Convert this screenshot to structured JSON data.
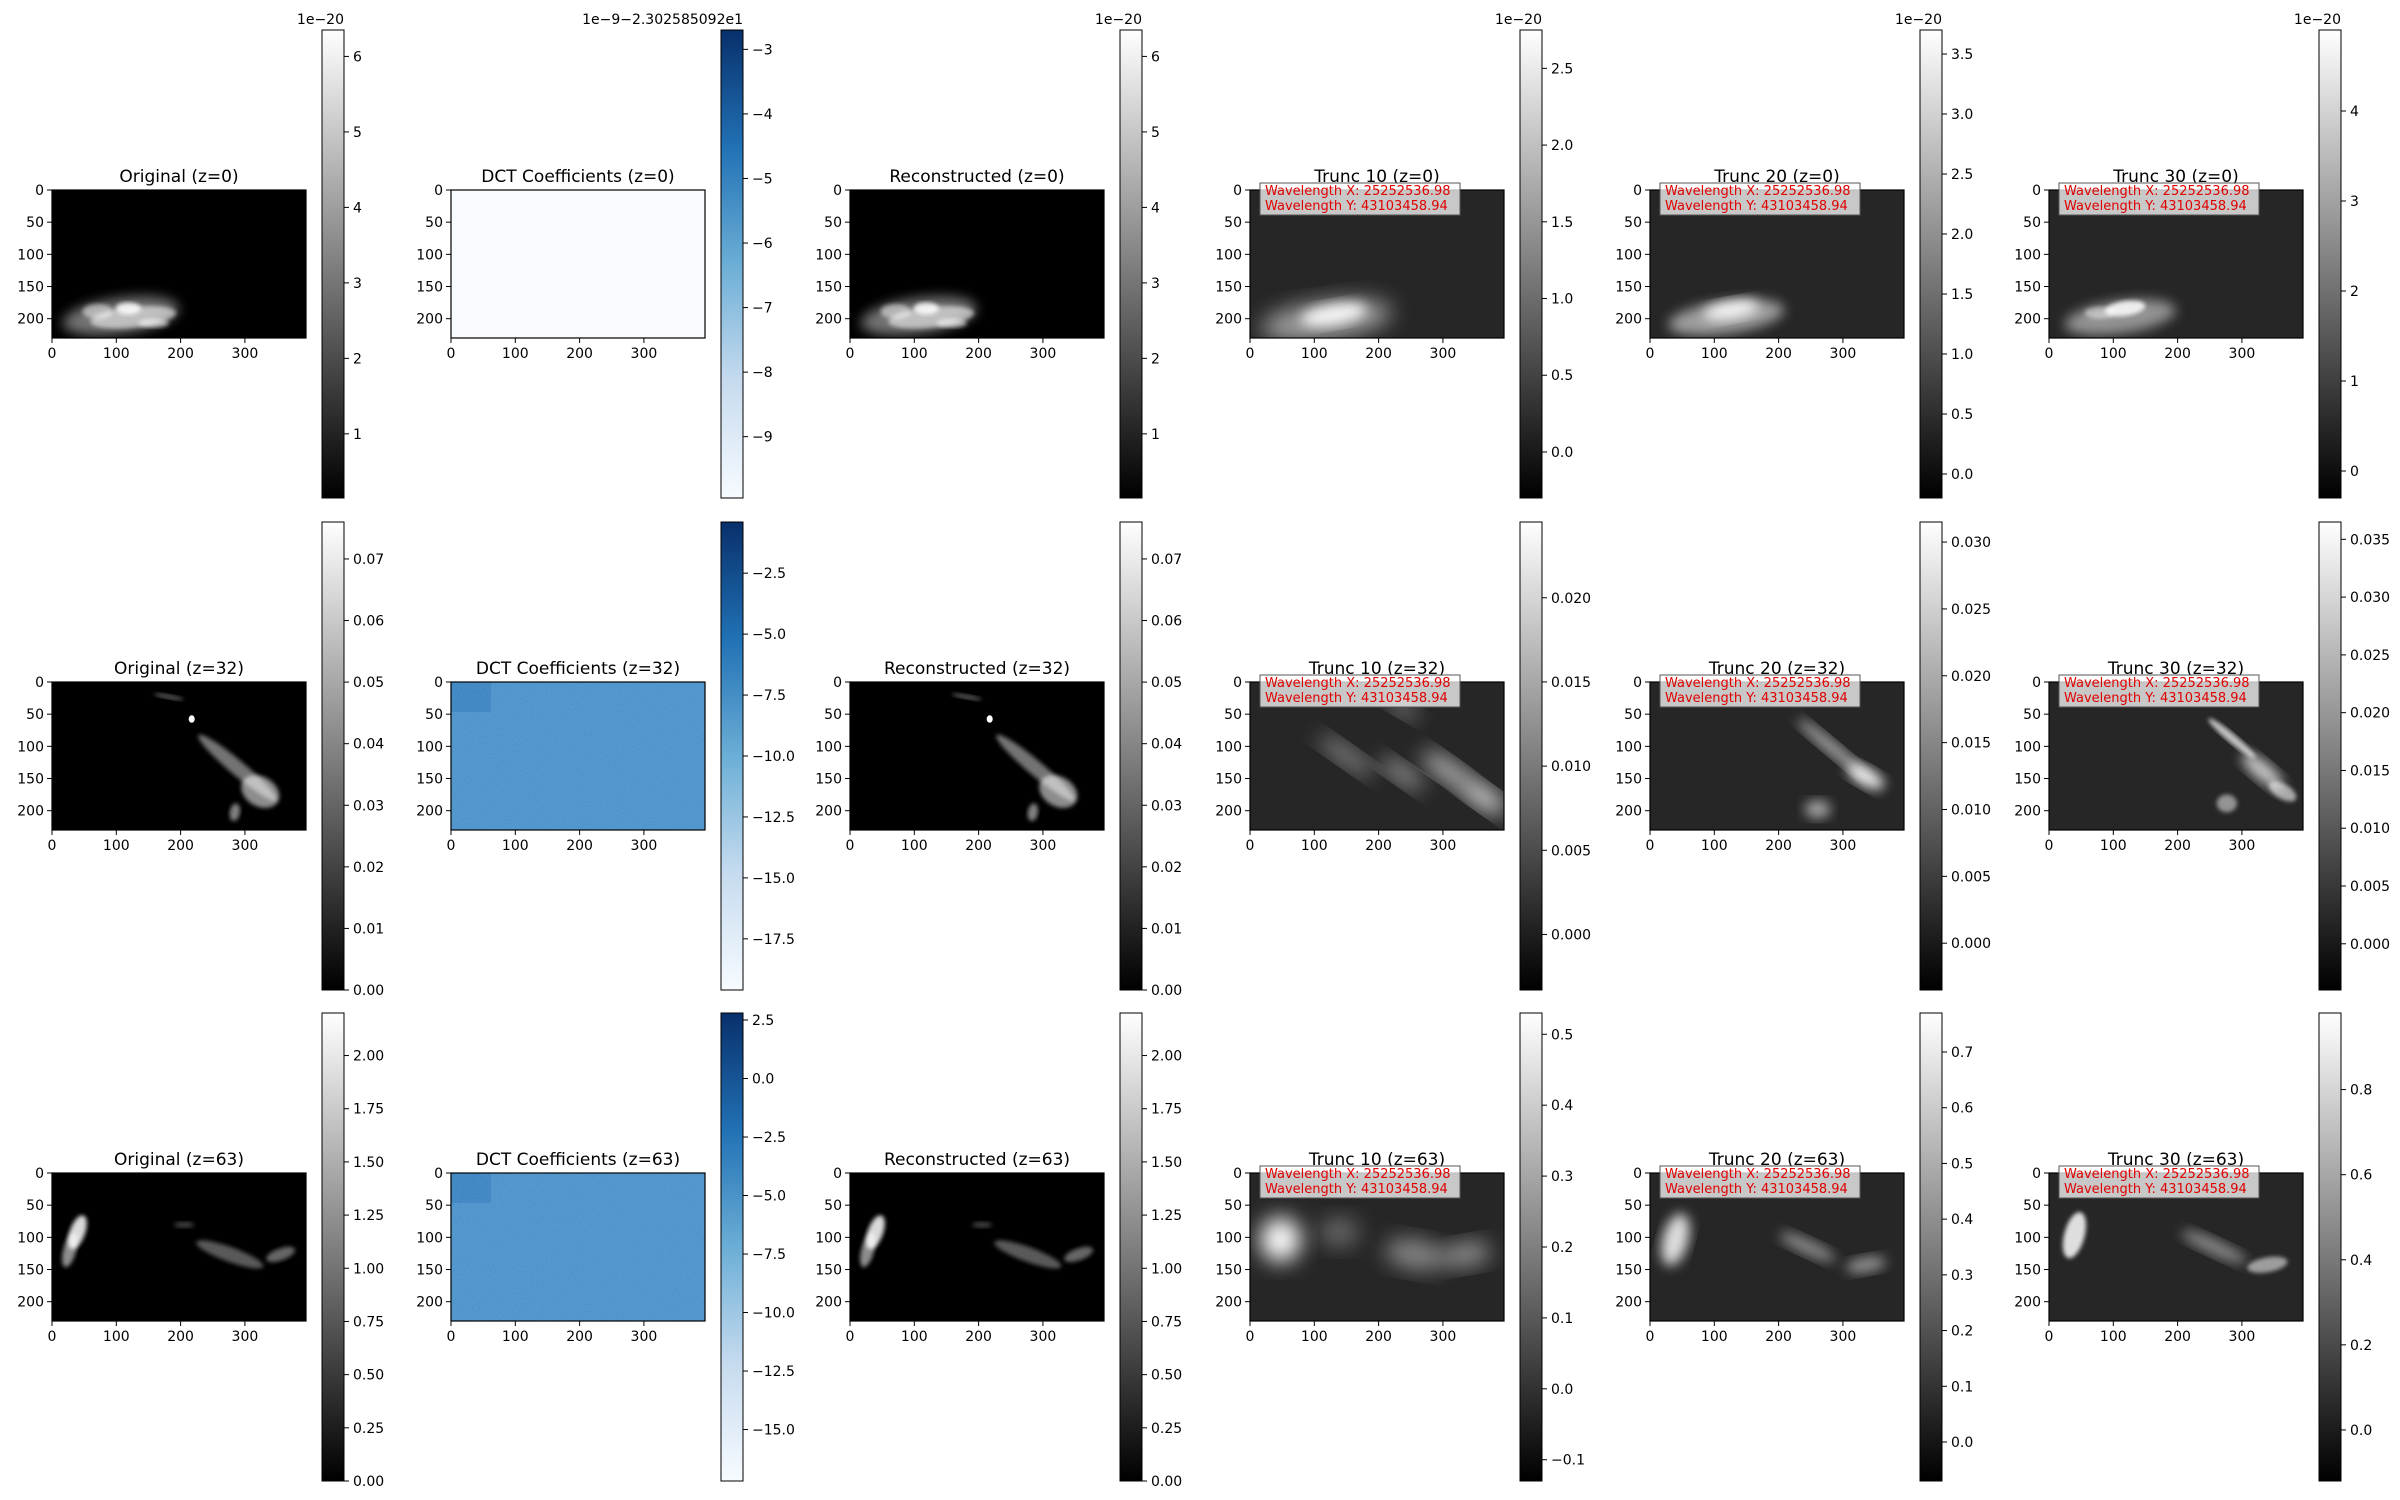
{
  "figure": {
    "description_rows": [
      "z=0",
      "z=32",
      "z=63"
    ]
  },
  "chart_data": [
    {
      "type": "heatmap",
      "title": "Original (z=0)",
      "cmap": "gray",
      "image": "orig0",
      "xticks": [
        0,
        100,
        200,
        300
      ],
      "yticks": [
        0,
        50,
        100,
        150,
        200
      ],
      "xlim": [
        0,
        395
      ],
      "ylim": [
        230,
        0
      ],
      "colorbar": {
        "ticks": [
          1,
          2,
          3,
          4,
          5,
          6
        ],
        "labels": [
          "1",
          "2",
          "3",
          "4",
          "5",
          "6"
        ],
        "range": [
          0.15,
          6.35
        ],
        "offset": "1e−20"
      },
      "annotations": []
    },
    {
      "type": "heatmap",
      "title": "DCT Coefficients (z=0)",
      "cmap": "blues",
      "image": "dctflat",
      "xticks": [
        0,
        100,
        200,
        300
      ],
      "yticks": [
        0,
        50,
        100,
        150,
        200
      ],
      "xlim": [
        0,
        395
      ],
      "ylim": [
        230,
        0
      ],
      "colorbar": {
        "ticks": [
          -9,
          -8,
          -7,
          -6,
          -5,
          -4,
          -3
        ],
        "labels": [
          "−9",
          "−8",
          "−7",
          "−6",
          "−5",
          "−4",
          "−3"
        ],
        "range": [
          -9.95,
          -2.7
        ],
        "offset": "1e−9−2.302585092e1"
      },
      "annotations": []
    },
    {
      "type": "heatmap",
      "title": "Reconstructed (z=0)",
      "cmap": "gray",
      "image": "orig0",
      "xticks": [
        0,
        100,
        200,
        300
      ],
      "yticks": [
        0,
        50,
        100,
        150,
        200
      ],
      "xlim": [
        0,
        395
      ],
      "ylim": [
        230,
        0
      ],
      "colorbar": {
        "ticks": [
          1,
          2,
          3,
          4,
          5,
          6
        ],
        "labels": [
          "1",
          "2",
          "3",
          "4",
          "5",
          "6"
        ],
        "range": [
          0.15,
          6.35
        ],
        "offset": "1e−20"
      },
      "annotations": []
    },
    {
      "type": "heatmap",
      "title": "Trunc 10 (z=0)",
      "cmap": "gray",
      "image": "t10z0",
      "xticks": [
        0,
        100,
        200,
        300
      ],
      "yticks": [
        0,
        50,
        100,
        150,
        200
      ],
      "xlim": [
        0,
        395
      ],
      "ylim": [
        230,
        0
      ],
      "colorbar": {
        "ticks": [
          0,
          0.5,
          1,
          1.5,
          2,
          2.5
        ],
        "labels": [
          "0.0",
          "0.5",
          "1.0",
          "1.5",
          "2.0",
          "2.5"
        ],
        "range": [
          -0.3,
          2.75
        ],
        "offset": "1e−20"
      },
      "annotations": [
        "Wavelength X: 25252536.98",
        "Wavelength Y: 43103458.94"
      ]
    },
    {
      "type": "heatmap",
      "title": "Trunc 20 (z=0)",
      "cmap": "gray",
      "image": "t20z0",
      "xticks": [
        0,
        100,
        200,
        300
      ],
      "yticks": [
        0,
        50,
        100,
        150,
        200
      ],
      "xlim": [
        0,
        395
      ],
      "ylim": [
        230,
        0
      ],
      "colorbar": {
        "ticks": [
          0,
          0.5,
          1,
          1.5,
          2,
          2.5,
          3,
          3.5
        ],
        "labels": [
          "0.0",
          "0.5",
          "1.0",
          "1.5",
          "2.0",
          "2.5",
          "3.0",
          "3.5"
        ],
        "range": [
          -0.2,
          3.7
        ],
        "offset": "1e−20"
      },
      "annotations": [
        "Wavelength X: 25252536.98",
        "Wavelength Y: 43103458.94"
      ]
    },
    {
      "type": "heatmap",
      "title": "Trunc 30 (z=0)",
      "cmap": "gray",
      "image": "t30z0",
      "xticks": [
        0,
        100,
        200,
        300
      ],
      "yticks": [
        0,
        50,
        100,
        150,
        200
      ],
      "xlim": [
        0,
        395
      ],
      "ylim": [
        230,
        0
      ],
      "colorbar": {
        "ticks": [
          0,
          1,
          2,
          3,
          4
        ],
        "labels": [
          "0",
          "1",
          "2",
          "3",
          "4"
        ],
        "range": [
          -0.3,
          4.9
        ],
        "offset": "1e−20"
      },
      "annotations": [
        "Wavelength X: 25252536.98",
        "Wavelength Y: 43103458.94"
      ]
    },
    {
      "type": "heatmap",
      "title": "Original (z=32)",
      "cmap": "gray",
      "image": "orig32",
      "xticks": [
        0,
        100,
        200,
        300
      ],
      "yticks": [
        0,
        50,
        100,
        150,
        200
      ],
      "xlim": [
        0,
        395
      ],
      "ylim": [
        230,
        0
      ],
      "colorbar": {
        "ticks": [
          0,
          0.01,
          0.02,
          0.03,
          0.04,
          0.05,
          0.06,
          0.07
        ],
        "labels": [
          "0.00",
          "0.01",
          "0.02",
          "0.03",
          "0.04",
          "0.05",
          "0.06",
          "0.07"
        ],
        "range": [
          0,
          0.076
        ],
        "offset": ""
      },
      "annotations": []
    },
    {
      "type": "heatmap",
      "title": "DCT Coefficients (z=32)",
      "cmap": "blues",
      "image": "dct32",
      "xticks": [
        0,
        100,
        200,
        300
      ],
      "yticks": [
        0,
        50,
        100,
        150,
        200
      ],
      "xlim": [
        0,
        395
      ],
      "ylim": [
        230,
        0
      ],
      "colorbar": {
        "ticks": [
          -17.5,
          -15,
          -12.5,
          -10,
          -7.5,
          -5,
          -2.5
        ],
        "labels": [
          "−17.5",
          "−15.0",
          "−12.5",
          "−10.0",
          "−7.5",
          "−5.0",
          "−2.5"
        ],
        "range": [
          -19.6,
          -0.4
        ],
        "offset": ""
      },
      "annotations": []
    },
    {
      "type": "heatmap",
      "title": "Reconstructed (z=32)",
      "cmap": "gray",
      "image": "orig32",
      "xticks": [
        0,
        100,
        200,
        300
      ],
      "yticks": [
        0,
        50,
        100,
        150,
        200
      ],
      "xlim": [
        0,
        395
      ],
      "ylim": [
        230,
        0
      ],
      "colorbar": {
        "ticks": [
          0,
          0.01,
          0.02,
          0.03,
          0.04,
          0.05,
          0.06,
          0.07
        ],
        "labels": [
          "0.00",
          "0.01",
          "0.02",
          "0.03",
          "0.04",
          "0.05",
          "0.06",
          "0.07"
        ],
        "range": [
          0,
          0.076
        ],
        "offset": ""
      },
      "annotations": []
    },
    {
      "type": "heatmap",
      "title": "Trunc 10 (z=32)",
      "cmap": "gray",
      "image": "t10z32",
      "xticks": [
        0,
        100,
        200,
        300
      ],
      "yticks": [
        0,
        50,
        100,
        150,
        200
      ],
      "xlim": [
        0,
        395
      ],
      "ylim": [
        230,
        0
      ],
      "colorbar": {
        "ticks": [
          0,
          0.005,
          0.01,
          0.015,
          0.02
        ],
        "labels": [
          "0.000",
          "0.005",
          "0.010",
          "0.015",
          "0.020"
        ],
        "range": [
          -0.0033,
          0.0245
        ],
        "offset": ""
      },
      "annotations": [
        "Wavelength X: 25252536.98",
        "Wavelength Y: 43103458.94"
      ]
    },
    {
      "type": "heatmap",
      "title": "Trunc 20 (z=32)",
      "cmap": "gray",
      "image": "t20z32",
      "xticks": [
        0,
        100,
        200,
        300
      ],
      "yticks": [
        0,
        50,
        100,
        150,
        200
      ],
      "xlim": [
        0,
        395
      ],
      "ylim": [
        230,
        0
      ],
      "colorbar": {
        "ticks": [
          0,
          0.005,
          0.01,
          0.015,
          0.02,
          0.025,
          0.03
        ],
        "labels": [
          "0.000",
          "0.005",
          "0.010",
          "0.015",
          "0.020",
          "0.025",
          "0.030"
        ],
        "range": [
          -0.0035,
          0.0315
        ],
        "offset": ""
      },
      "annotations": [
        "Wavelength X: 25252536.98",
        "Wavelength Y: 43103458.94"
      ]
    },
    {
      "type": "heatmap",
      "title": "Trunc 30 (z=32)",
      "cmap": "gray",
      "image": "t30z32",
      "xticks": [
        0,
        100,
        200,
        300
      ],
      "yticks": [
        0,
        50,
        100,
        150,
        200
      ],
      "xlim": [
        0,
        395
      ],
      "ylim": [
        230,
        0
      ],
      "colorbar": {
        "ticks": [
          0,
          0.005,
          0.01,
          0.015,
          0.02,
          0.025,
          0.03,
          0.035
        ],
        "labels": [
          "0.000",
          "0.005",
          "0.010",
          "0.015",
          "0.020",
          "0.025",
          "0.030",
          "0.035"
        ],
        "range": [
          -0.004,
          0.0365
        ],
        "offset": ""
      },
      "annotations": [
        "Wavelength X: 25252536.98",
        "Wavelength Y: 43103458.94"
      ]
    },
    {
      "type": "heatmap",
      "title": "Original (z=63)",
      "cmap": "gray",
      "image": "orig63",
      "xticks": [
        0,
        100,
        200,
        300
      ],
      "yticks": [
        0,
        50,
        100,
        150,
        200
      ],
      "xlim": [
        0,
        395
      ],
      "ylim": [
        230,
        0
      ],
      "colorbar": {
        "ticks": [
          0,
          0.25,
          0.5,
          0.75,
          1,
          1.25,
          1.5,
          1.75,
          2
        ],
        "labels": [
          "0.00",
          "0.25",
          "0.50",
          "0.75",
          "1.00",
          "1.25",
          "1.50",
          "1.75",
          "2.00"
        ],
        "range": [
          0,
          2.2
        ],
        "offset": ""
      },
      "annotations": []
    },
    {
      "type": "heatmap",
      "title": "DCT Coefficients (z=63)",
      "cmap": "blues",
      "image": "dct63",
      "xticks": [
        0,
        100,
        200,
        300
      ],
      "yticks": [
        0,
        50,
        100,
        150,
        200
      ],
      "xlim": [
        0,
        395
      ],
      "ylim": [
        230,
        0
      ],
      "colorbar": {
        "ticks": [
          -15,
          -12.5,
          -10,
          -7.5,
          -5,
          -2.5,
          0,
          2.5
        ],
        "labels": [
          "−15.0",
          "−12.5",
          "−10.0",
          "−7.5",
          "−5.0",
          "−2.5",
          "0.0",
          "2.5"
        ],
        "range": [
          -17.2,
          2.8
        ],
        "offset": ""
      },
      "annotations": []
    },
    {
      "type": "heatmap",
      "title": "Reconstructed (z=63)",
      "cmap": "gray",
      "image": "orig63",
      "xticks": [
        0,
        100,
        200,
        300
      ],
      "yticks": [
        0,
        50,
        100,
        150,
        200
      ],
      "xlim": [
        0,
        395
      ],
      "ylim": [
        230,
        0
      ],
      "colorbar": {
        "ticks": [
          0,
          0.25,
          0.5,
          0.75,
          1,
          1.25,
          1.5,
          1.75,
          2
        ],
        "labels": [
          "0.00",
          "0.25",
          "0.50",
          "0.75",
          "1.00",
          "1.25",
          "1.50",
          "1.75",
          "2.00"
        ],
        "range": [
          0,
          2.2
        ],
        "offset": ""
      },
      "annotations": []
    },
    {
      "type": "heatmap",
      "title": "Trunc 10 (z=63)",
      "cmap": "gray",
      "image": "t10z63",
      "xticks": [
        0,
        100,
        200,
        300
      ],
      "yticks": [
        0,
        50,
        100,
        150,
        200
      ],
      "xlim": [
        0,
        395
      ],
      "ylim": [
        230,
        0
      ],
      "colorbar": {
        "ticks": [
          -0.1,
          0,
          0.1,
          0.2,
          0.3,
          0.4,
          0.5
        ],
        "labels": [
          "−0.1",
          "0.0",
          "0.1",
          "0.2",
          "0.3",
          "0.4",
          "0.5"
        ],
        "range": [
          -0.13,
          0.53
        ],
        "offset": ""
      },
      "annotations": [
        "Wavelength X: 25252536.98",
        "Wavelength Y: 43103458.94"
      ]
    },
    {
      "type": "heatmap",
      "title": "Trunc 20 (z=63)",
      "cmap": "gray",
      "image": "t20z63",
      "xticks": [
        0,
        100,
        200,
        300
      ],
      "yticks": [
        0,
        50,
        100,
        150,
        200
      ],
      "xlim": [
        0,
        395
      ],
      "ylim": [
        230,
        0
      ],
      "colorbar": {
        "ticks": [
          0,
          0.1,
          0.2,
          0.3,
          0.4,
          0.5,
          0.6,
          0.7
        ],
        "labels": [
          "0.0",
          "0.1",
          "0.2",
          "0.3",
          "0.4",
          "0.5",
          "0.6",
          "0.7"
        ],
        "range": [
          -0.07,
          0.77
        ],
        "offset": ""
      },
      "annotations": [
        "Wavelength X: 25252536.98",
        "Wavelength Y: 43103458.94"
      ]
    },
    {
      "type": "heatmap",
      "title": "Trunc 30 (z=63)",
      "cmap": "gray",
      "image": "t30z63",
      "xticks": [
        0,
        100,
        200,
        300
      ],
      "yticks": [
        0,
        50,
        100,
        150,
        200
      ],
      "xlim": [
        0,
        395
      ],
      "ylim": [
        230,
        0
      ],
      "colorbar": {
        "ticks": [
          0,
          0.2,
          0.4,
          0.6,
          0.8
        ],
        "labels": [
          "0.0",
          "0.2",
          "0.4",
          "0.6",
          "0.8"
        ],
        "range": [
          -0.12,
          0.98
        ],
        "offset": ""
      },
      "annotations": [
        "Wavelength X: 25252536.98",
        "Wavelength Y: 43103458.94"
      ]
    }
  ]
}
